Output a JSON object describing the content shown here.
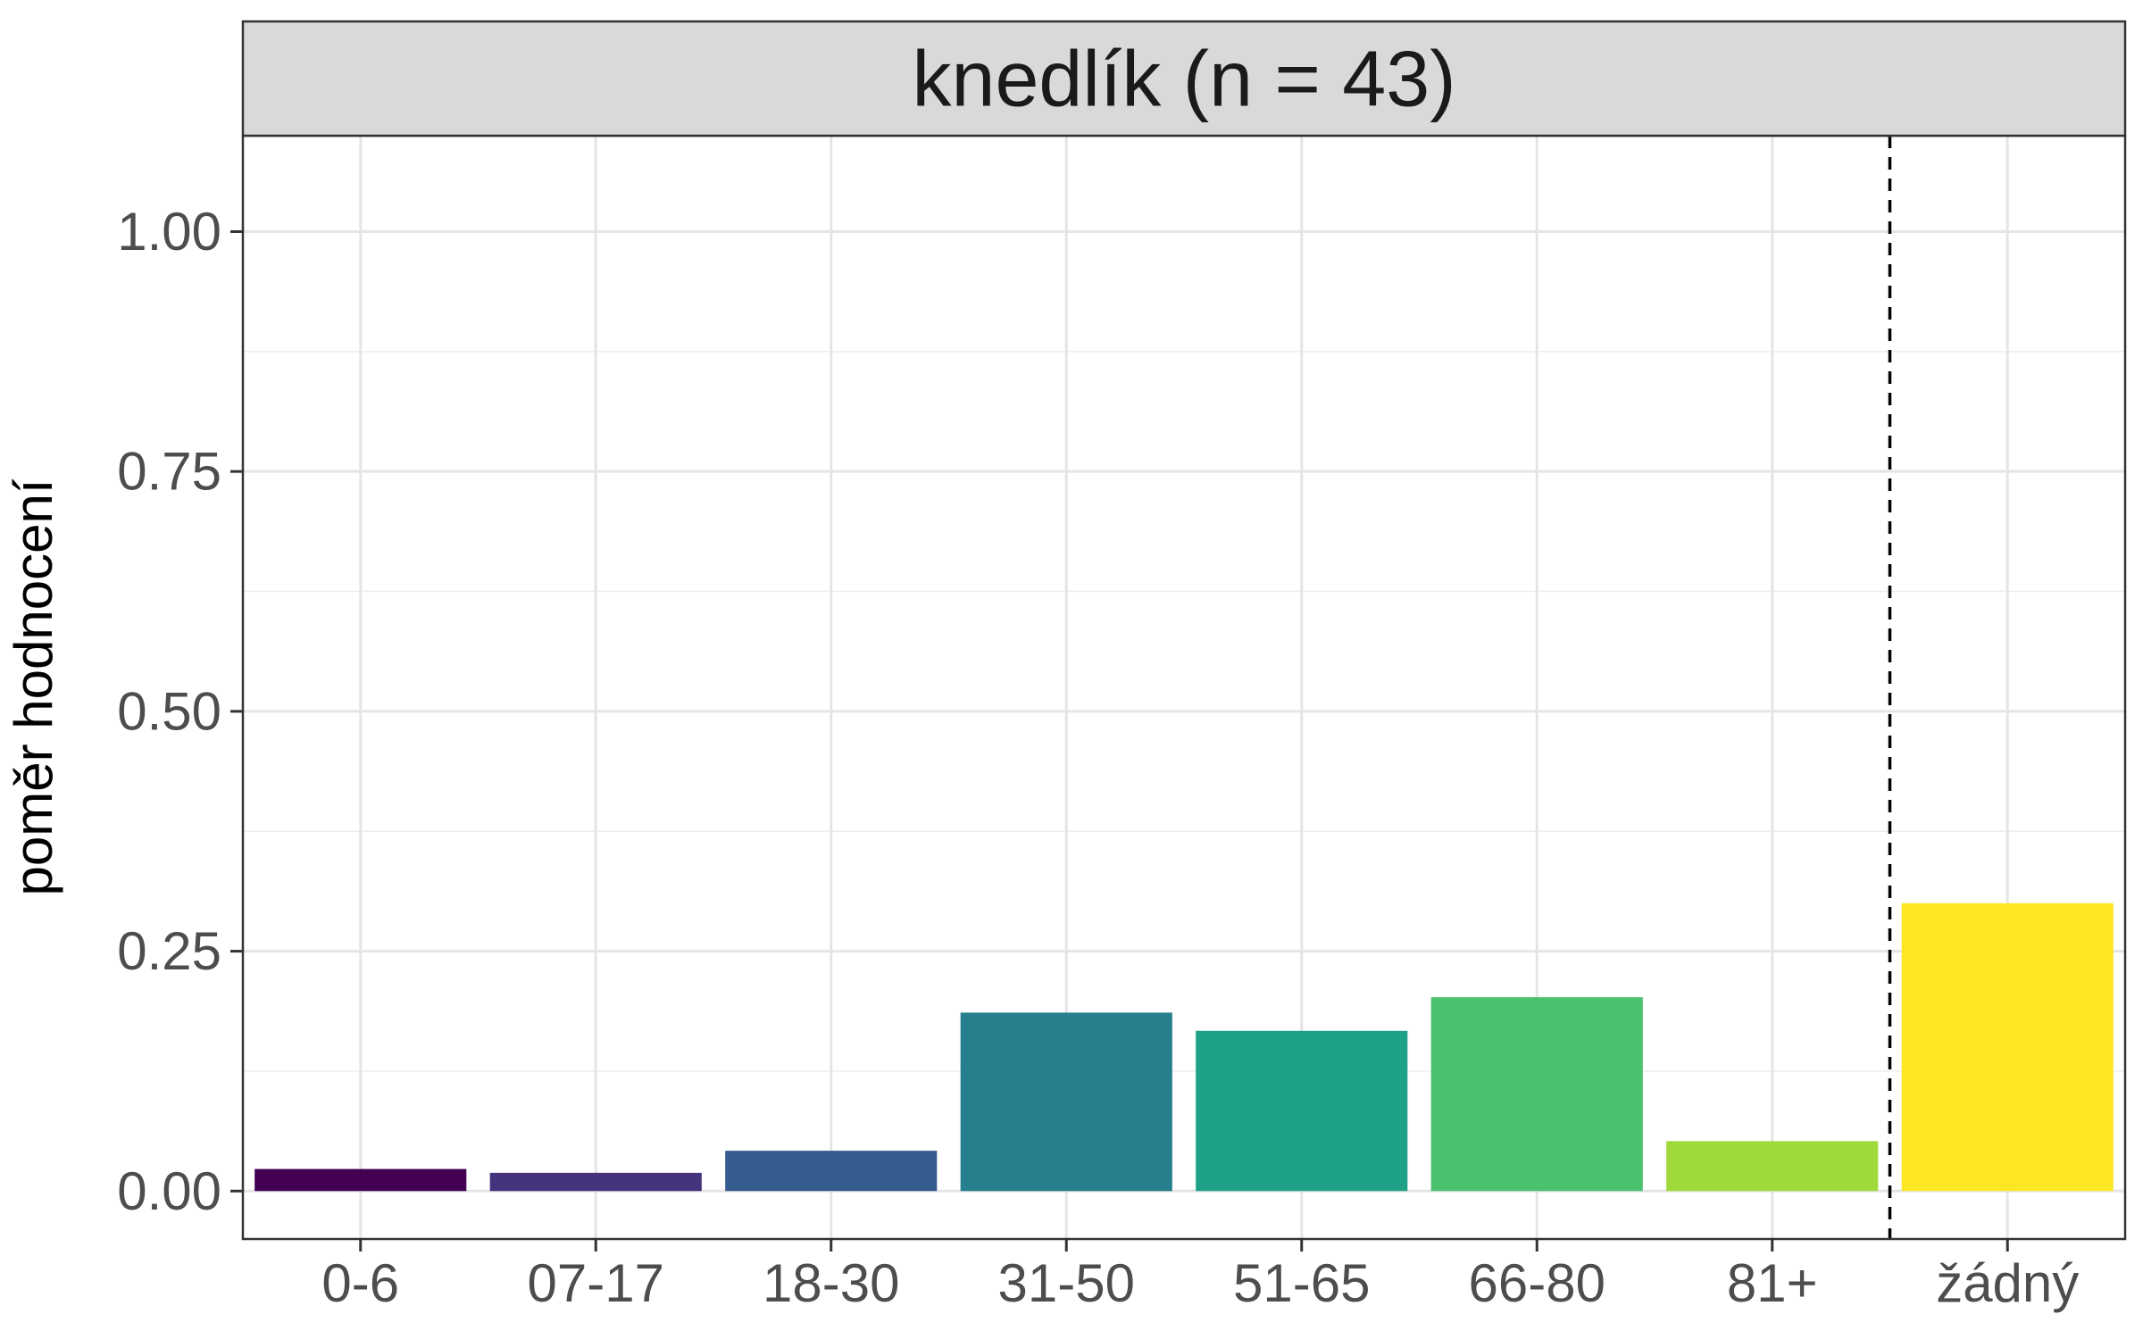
{
  "chart_data": {
    "type": "bar",
    "title": "knedlík (n = 43)",
    "xlabel": "",
    "ylabel": "poměr hodnocení",
    "categories": [
      "0-6",
      "07-17",
      "18-30",
      "31-50",
      "51-65",
      "66-80",
      "81+",
      "žádný"
    ],
    "values": [
      0.023,
      0.019,
      0.042,
      0.186,
      0.167,
      0.202,
      0.052,
      0.3
    ],
    "colors": [
      "#440154",
      "#46337E",
      "#365C8D",
      "#277F8E",
      "#1FA187",
      "#4AC16D",
      "#9FDA3A",
      "#FDE725"
    ],
    "ylim": [
      -0.05,
      1.1
    ],
    "yticks": [
      0.0,
      0.25,
      0.5,
      0.75,
      1.0
    ],
    "ytick_labels": [
      "0.00",
      "0.25",
      "0.50",
      "0.75",
      "1.00"
    ],
    "reference_line": {
      "between": [
        "81+",
        "žádný"
      ],
      "style": "dashed"
    },
    "grid": true,
    "legend": "none"
  }
}
